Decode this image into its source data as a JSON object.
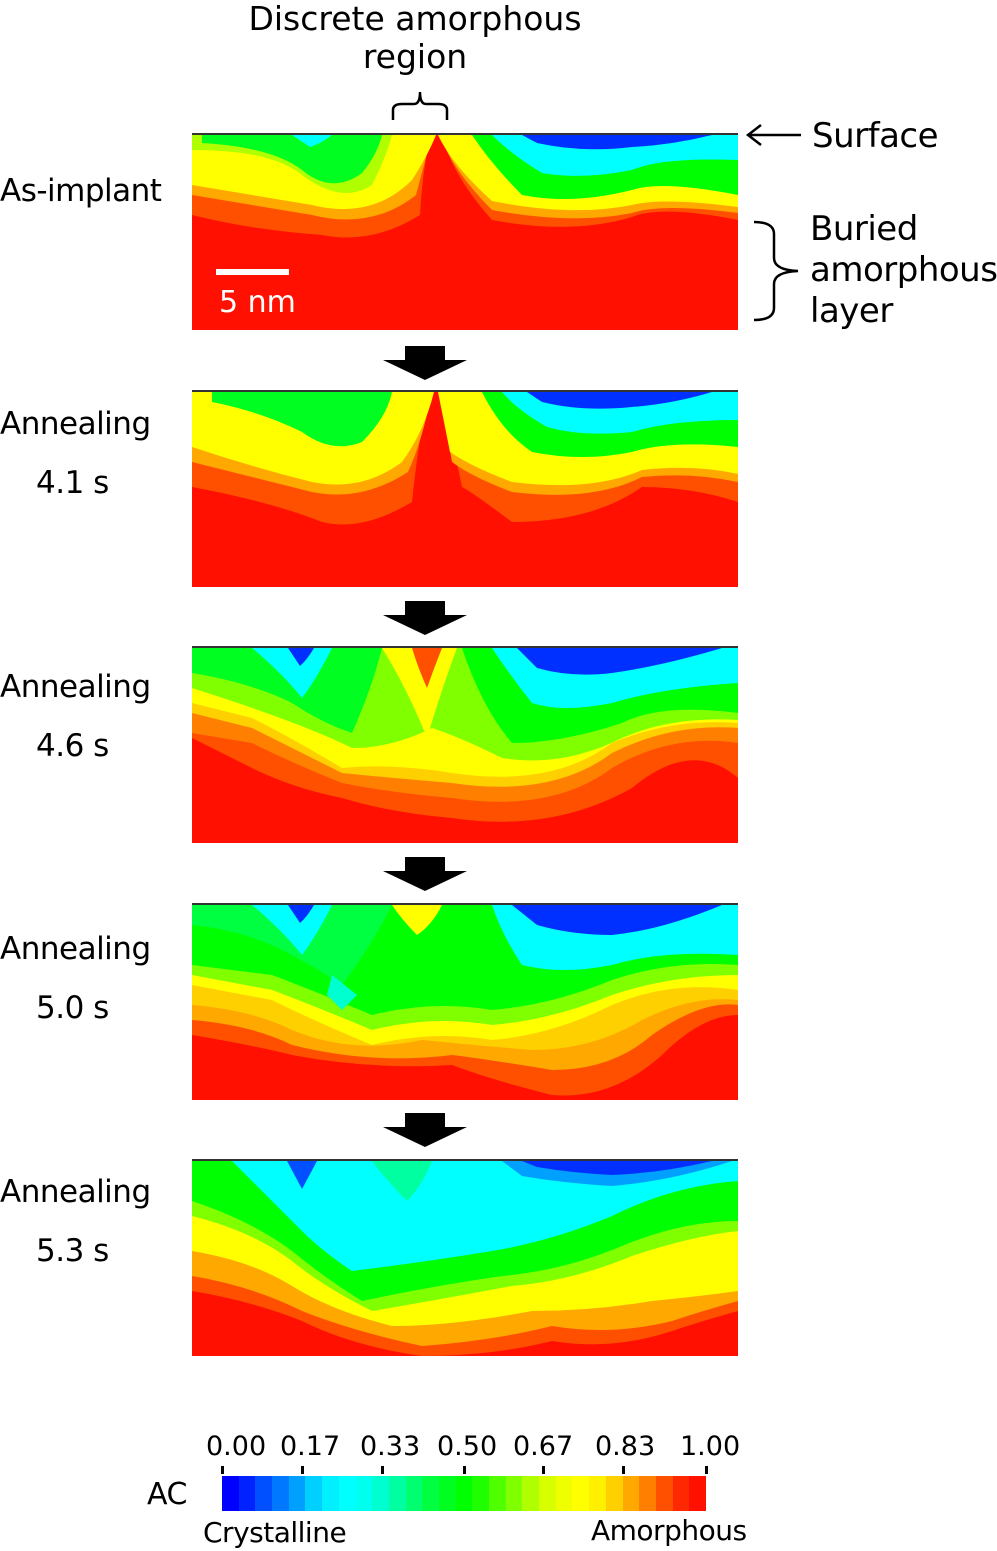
{
  "title": {
    "line1": "Discrete amorphous",
    "line2": "region"
  },
  "annotations": {
    "surface": "Surface",
    "buried_line1": "Buried",
    "buried_line2": "amorphous",
    "buried_line3": "layer",
    "scale_bar": "5 nm"
  },
  "panels": [
    {
      "label": "As-implant",
      "time": ""
    },
    {
      "label": "Annealing",
      "time": "4.1 s"
    },
    {
      "label": "Annealing",
      "time": "4.6 s"
    },
    {
      "label": "Annealing",
      "time": "5.0 s"
    },
    {
      "label": "Annealing",
      "time": "5.3 s"
    }
  ],
  "colorbar": {
    "axis_label": "AC",
    "ticks": [
      "0.00",
      "0.17",
      "0.33",
      "0.50",
      "0.67",
      "0.83",
      "1.00"
    ],
    "low_label": "Crystalline",
    "high_label": "Amorphous",
    "colors": [
      "#0000ff",
      "#0022ff",
      "#0050ff",
      "#0078ff",
      "#00a0ff",
      "#00d0ff",
      "#00f0ff",
      "#00ffff",
      "#00ffee",
      "#00ffd0",
      "#00ffa0",
      "#00ff70",
      "#00ff40",
      "#00ff20",
      "#00ff00",
      "#20ff00",
      "#50ff00",
      "#80ff00",
      "#b0ff00",
      "#d8ff00",
      "#f0ff00",
      "#ffff00",
      "#fff000",
      "#ffd000",
      "#ffa800",
      "#ff8000",
      "#ff5000",
      "#ff2800",
      "#ff1000"
    ]
  },
  "chart_data": {
    "type": "heatmap",
    "title": "Discrete amorphous region",
    "colorbar_label": "AC",
    "colorbar_range": [
      0.0,
      1.0
    ],
    "colorbar_ticks": [
      0.0,
      0.17,
      0.33,
      0.5,
      0.67,
      0.83,
      1.0
    ],
    "colorbar_endpoints": {
      "0.00": "Crystalline",
      "1.00": "Amorphous"
    },
    "scale_bar": "5 nm",
    "annotations": [
      "Surface",
      "Buried amorphous layer",
      "Discrete amorphous region"
    ],
    "panels": [
      {
        "name": "As-implant",
        "description": "Red buried amorphous layer in lower ~55%; narrow red amorphous column at center extending to surface; green/cyan/blue crystalline near surface on right"
      },
      {
        "name": "Annealing 4.1 s",
        "description": "Central amorphous column narrows; buried layer still mostly red; surface crystalline region slightly expanding"
      },
      {
        "name": "Annealing 4.6 s",
        "description": "Central column mostly yellow with small red tip at surface; crystalline (green) regrowth deepens; buried layer orange/red at bottom"
      },
      {
        "name": "Annealing 5.0 s",
        "description": "Central column yellow only at surface; green crystalline dominates upper half; red remains only near bottom"
      },
      {
        "name": "Annealing 5.3 s",
        "description": "Discrete amorphous region gone; cyan/green dominate upper region; yellow band with red/orange at bottom edge"
      }
    ]
  }
}
